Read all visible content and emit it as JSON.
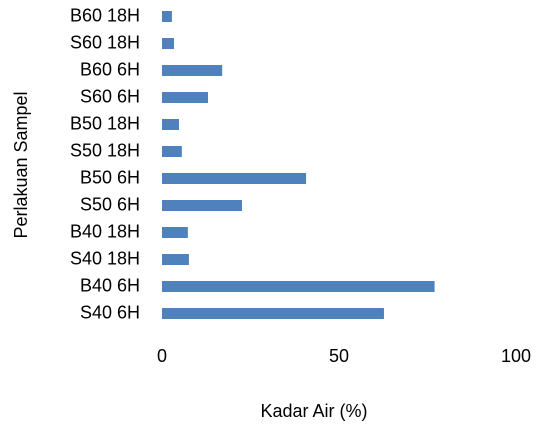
{
  "chart_data": {
    "type": "barh",
    "x_label": "Kadar Air (%)",
    "y_label": "Perlakuan Sampel",
    "categories": [
      "S40 6H",
      "B40 6H",
      "S40 18H",
      "B40 18H",
      "S50 6H",
      "B50 6H",
      "S50 18H",
      "B50 18H",
      "S60 6H",
      "B60 6H",
      "S60 18H",
      "B60 18H"
    ],
    "values": [
      62.7,
      77,
      7.6,
      7.3,
      22.6,
      40.7,
      5.6,
      4.8,
      13,
      17,
      3.4,
      2.8
    ],
    "color": "#4f81bd",
    "xlim": [
      0,
      100
    ],
    "xticks": [
      0,
      50,
      100
    ],
    "grid": false
  }
}
